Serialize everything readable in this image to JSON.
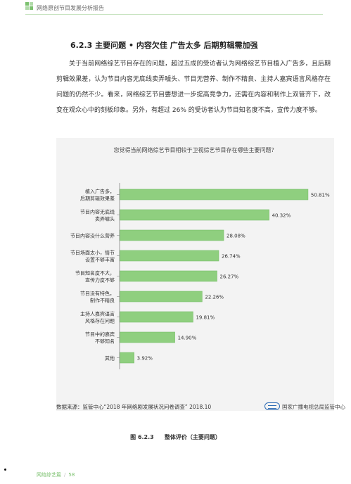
{
  "header": {
    "title": "网络原创节目发展分析报告"
  },
  "section": {
    "title": "6.2.3 主要问题 • 内容欠佳 广告太多 后期剪辑需加强",
    "paragraph": "关于当前网络综艺节目存在的问题，超过五成的受访者认为网络综艺节目植入广告多，且后期剪辑效果差，认为节目内容无底线卖弄噱头、节目无营养、制作不精良、主持人嘉宾语言风格存在问题的仍然不少。看来，网络综艺节目要想进一步提高竞争力，还需在内容和制作上双管齐下，改变在观众心中的刻板印象。另外，有超过 26% 的受访者认为节目知名度不高，宣传力度不够。"
  },
  "chart_data": {
    "type": "bar",
    "orientation": "horizontal",
    "title": "您觉得当前网络综艺节目相较于卫视综艺节目存在哪些主要问题？",
    "categories": [
      [
        "植入广告多，",
        "后期剪辑效果差"
      ],
      [
        "节目内容无底线",
        "卖弄噱头"
      ],
      [
        "节目内容没什么营养"
      ],
      [
        "节目场面太小，情节",
        "设置不够丰富"
      ],
      [
        "节目知名度不大，",
        "宣传力度不够"
      ],
      [
        "节目没有特色，",
        "制作不精良"
      ],
      [
        "主持人嘉宾语言",
        "风格存在问题"
      ],
      [
        "节目中的嘉宾",
        "不够知名"
      ],
      [
        "其他"
      ]
    ],
    "values": [
      50.81,
      40.32,
      28.08,
      26.74,
      26.27,
      22.26,
      19.81,
      14.9,
      3.92
    ],
    "value_labels": [
      "50.81%",
      "40.32%",
      "28.08%",
      "26.74%",
      "26.27%",
      "22.26%",
      "19.81%",
      "14.90%",
      "3.92%"
    ],
    "xlim": [
      0,
      55
    ],
    "bar_color": "#8fcf7f",
    "bar_edge_color": "#7bbf6b",
    "grid": false
  },
  "source_text": "数据来源：监管中心“2018 年网络剧发展状况问卷调查” 2018.10",
  "org_name": "国家广播电视总局监管中心",
  "caption": {
    "label": "图 6.2.3",
    "text": "整体评价（主要问题）"
  },
  "footer": {
    "section": "网络综艺篇",
    "page": "58"
  }
}
